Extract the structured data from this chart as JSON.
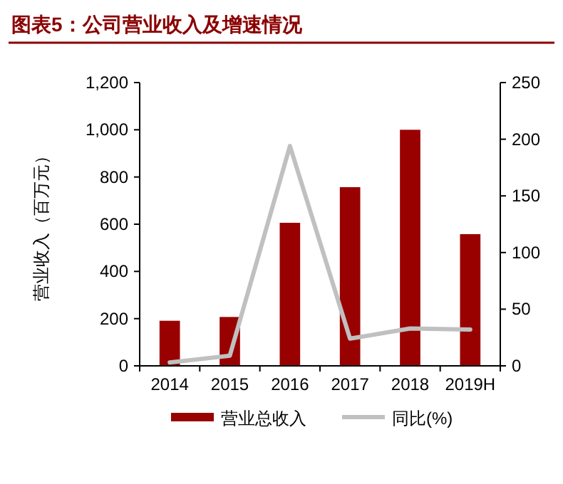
{
  "chart_data": {
    "type": "bar",
    "title": "图表5：公司营业收入及增速情况",
    "ylabel": "营业收入（百万元）",
    "categories": [
      "2014",
      "2015",
      "2016",
      "2017",
      "2018",
      "2019H"
    ],
    "series": [
      {
        "name": "营业总收入",
        "color": "#990000",
        "values": [
          191,
          207,
          606,
          757,
          1000,
          558
        ]
      },
      {
        "name": "同比(%)",
        "type": "line",
        "axis": "y2",
        "color": "#c0c0c0",
        "values": [
          3,
          9,
          194,
          24,
          33,
          32
        ]
      }
    ],
    "ylim": [
      0,
      1200
    ],
    "yticks": [
      0,
      200,
      400,
      600,
      800,
      {
        "value": 1000,
        "label": "1,000"
      },
      {
        "value": 1200,
        "label": "1,200"
      }
    ],
    "y2lim": [
      0,
      250
    ],
    "y2ticks": [
      0,
      50,
      100,
      150,
      200,
      250
    ],
    "grid": false,
    "legend": "bottom",
    "marker": "none",
    "line_style": "solid"
  }
}
